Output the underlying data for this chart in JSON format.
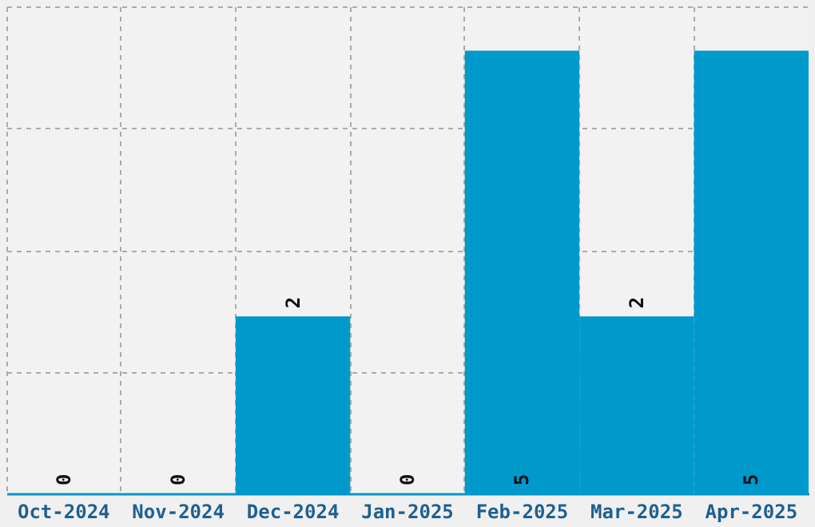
{
  "chart_data": {
    "type": "bar",
    "categories": [
      "Oct-2024",
      "Nov-2024",
      "Dec-2024",
      "Jan-2025",
      "Feb-2025",
      "Mar-2025",
      "Apr-2025"
    ],
    "values": [
      0,
      0,
      2,
      0,
      5,
      2,
      5
    ],
    "color": "#0099cc",
    "ylim": [
      0,
      5.5
    ],
    "yticks": [
      {
        "value": 0,
        "label": null
      },
      {
        "value": 1.375,
        "label": null
      },
      {
        "value": 2.75,
        "label": null
      },
      {
        "value": 4.125,
        "label": null
      },
      {
        "value": 5.5,
        "label": null
      }
    ],
    "grid": true,
    "tick_labels": "x",
    "data_labels": true
  }
}
